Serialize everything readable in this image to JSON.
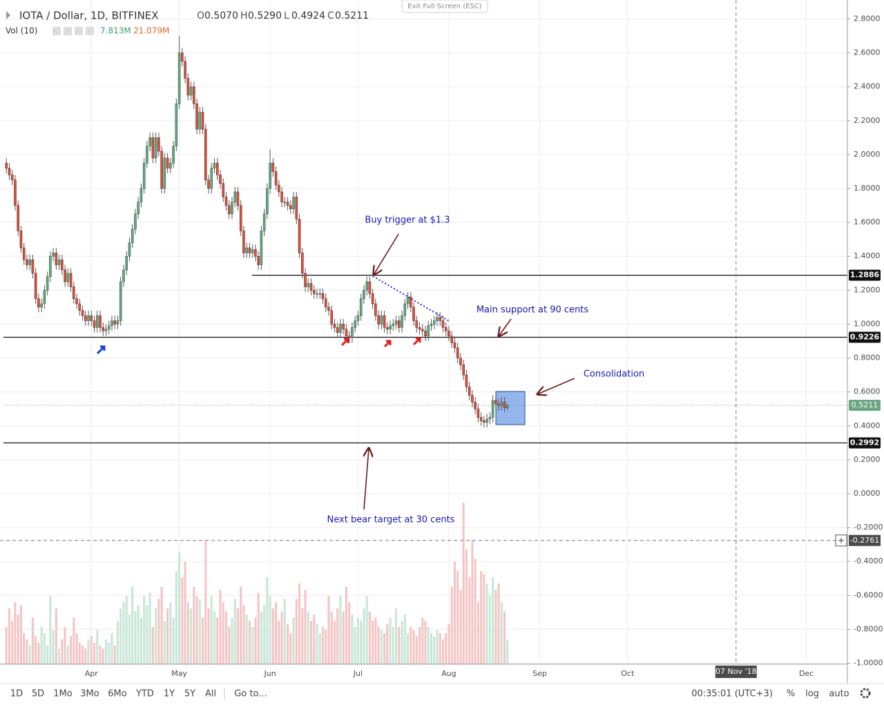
{
  "header": {
    "exit_fullscreen": "Exit Full Screen (ESC)",
    "symbol": "IOTA / Dollar, 1D, BITFINEX",
    "ohlc": [
      {
        "label": "O",
        "value": "0.5070"
      },
      {
        "label": "H",
        "value": "0.5290"
      },
      {
        "label": "L",
        "value": "0.4924"
      },
      {
        "label": "C",
        "value": "0.5211"
      }
    ],
    "volume_title": "Vol (10)",
    "volume_value": "7.813M",
    "volume_ma": "21.079M"
  },
  "chart_data": {
    "type": "candlestick",
    "x": [
      "2018-03-03",
      "2018-03-04",
      "2018-03-05",
      "2018-03-06",
      "2018-03-07",
      "2018-03-08",
      "2018-03-09",
      "2018-03-10",
      "2018-03-11",
      "2018-03-12",
      "2018-03-13",
      "2018-03-14",
      "2018-03-15",
      "2018-03-16",
      "2018-03-17",
      "2018-03-18",
      "2018-03-19",
      "2018-03-20",
      "2018-03-21",
      "2018-03-22",
      "2018-03-23",
      "2018-03-24",
      "2018-03-25",
      "2018-03-26",
      "2018-03-27",
      "2018-03-28",
      "2018-03-29",
      "2018-03-30",
      "2018-03-31",
      "2018-04-01",
      "2018-04-02",
      "2018-04-03",
      "2018-04-04",
      "2018-04-05",
      "2018-04-06",
      "2018-04-07",
      "2018-04-08",
      "2018-04-09",
      "2018-04-10",
      "2018-04-11",
      "2018-04-12",
      "2018-04-13",
      "2018-04-14",
      "2018-04-15",
      "2018-04-16",
      "2018-04-17",
      "2018-04-18",
      "2018-04-19",
      "2018-04-20",
      "2018-04-21",
      "2018-04-22",
      "2018-04-23",
      "2018-04-24",
      "2018-04-25",
      "2018-04-26",
      "2018-04-27",
      "2018-04-28",
      "2018-04-29",
      "2018-04-30",
      "2018-05-01",
      "2018-05-02",
      "2018-05-03",
      "2018-05-04",
      "2018-05-05",
      "2018-05-06",
      "2018-05-07",
      "2018-05-08",
      "2018-05-09",
      "2018-05-10",
      "2018-05-11",
      "2018-05-12",
      "2018-05-13",
      "2018-05-14",
      "2018-05-15",
      "2018-05-16",
      "2018-05-17",
      "2018-05-18",
      "2018-05-19",
      "2018-05-20",
      "2018-05-21",
      "2018-05-22",
      "2018-05-23",
      "2018-05-24",
      "2018-05-25",
      "2018-05-26",
      "2018-05-27",
      "2018-05-28",
      "2018-05-29",
      "2018-05-30",
      "2018-05-31",
      "2018-06-01",
      "2018-06-02",
      "2018-06-03",
      "2018-06-04",
      "2018-06-05",
      "2018-06-06",
      "2018-06-07",
      "2018-06-08",
      "2018-06-09",
      "2018-06-10",
      "2018-06-11",
      "2018-06-12",
      "2018-06-13",
      "2018-06-14",
      "2018-06-15",
      "2018-06-16",
      "2018-06-17",
      "2018-06-18",
      "2018-06-19",
      "2018-06-20",
      "2018-06-21",
      "2018-06-22",
      "2018-06-23",
      "2018-06-24",
      "2018-06-25",
      "2018-06-26",
      "2018-06-27",
      "2018-06-28",
      "2018-06-29",
      "2018-06-30",
      "2018-07-01",
      "2018-07-02",
      "2018-07-03",
      "2018-07-04",
      "2018-07-05",
      "2018-07-06",
      "2018-07-07",
      "2018-07-08",
      "2018-07-09",
      "2018-07-10",
      "2018-07-11",
      "2018-07-12",
      "2018-07-13",
      "2018-07-14",
      "2018-07-15",
      "2018-07-16",
      "2018-07-17",
      "2018-07-18",
      "2018-07-19",
      "2018-07-20",
      "2018-07-21",
      "2018-07-22",
      "2018-07-23",
      "2018-07-24",
      "2018-07-25",
      "2018-07-26",
      "2018-07-27",
      "2018-07-28",
      "2018-07-29",
      "2018-07-30",
      "2018-07-31",
      "2018-08-01",
      "2018-08-02",
      "2018-08-03",
      "2018-08-04",
      "2018-08-05",
      "2018-08-06",
      "2018-08-07",
      "2018-08-08",
      "2018-08-09",
      "2018-08-10",
      "2018-08-11",
      "2018-08-12",
      "2018-08-13",
      "2018-08-14",
      "2018-08-15",
      "2018-08-16",
      "2018-08-17",
      "2018-08-18",
      "2018-08-19",
      "2018-08-20",
      "2018-08-21"
    ],
    "open": [
      1.95,
      1.92,
      1.88,
      1.85,
      1.7,
      1.55,
      1.45,
      1.38,
      1.35,
      1.38,
      1.3,
      1.15,
      1.1,
      1.12,
      1.2,
      1.28,
      1.4,
      1.42,
      1.35,
      1.38,
      1.32,
      1.25,
      1.3,
      1.22,
      1.15,
      1.12,
      1.08,
      1.05,
      1.02,
      1.05,
      1.02,
      0.98,
      1.05,
      0.98,
      0.96,
      0.97,
      0.99,
      1.02,
      1.0,
      1.02,
      1.25,
      1.32,
      1.4,
      1.48,
      1.56,
      1.65,
      1.72,
      1.8,
      1.95,
      2.05,
      2.1,
      1.98,
      2.1,
      2.02,
      1.8,
      1.98,
      1.92,
      1.95,
      2.05,
      2.3,
      2.6,
      2.55,
      2.45,
      2.35,
      2.4,
      2.3,
      2.15,
      2.25,
      2.15,
      1.85,
      1.8,
      1.92,
      1.95,
      1.88,
      1.83,
      1.75,
      1.7,
      1.65,
      1.72,
      1.78,
      1.7,
      1.55,
      1.42,
      1.45,
      1.42,
      1.44,
      1.4,
      1.35,
      1.55,
      1.65,
      1.8,
      1.95,
      1.9,
      1.82,
      1.78,
      1.72,
      1.72,
      1.7,
      1.68,
      1.75,
      1.62,
      1.42,
      1.3,
      1.22,
      1.24,
      1.2,
      1.18,
      1.18,
      1.18,
      1.15,
      1.1,
      1.08,
      1.0,
      0.98,
      0.95,
      1.0,
      0.97,
      0.93,
      0.92,
      0.98,
      1.02,
      1.05,
      1.15,
      1.2,
      1.25,
      1.18,
      1.12,
      1.05,
      1.0,
      1.05,
      0.98,
      0.97,
      0.99,
      1.0,
      1.02,
      0.98,
      1.05,
      1.12,
      1.16,
      1.1,
      1.02,
      0.98,
      0.97,
      0.96,
      0.93,
      0.99,
      1.0,
      1.02,
      1.04,
      1.02,
      0.98,
      0.96,
      0.93,
      0.89,
      0.86,
      0.8,
      0.76,
      0.7,
      0.63,
      0.58,
      0.54,
      0.5,
      0.45,
      0.43,
      0.42,
      0.44,
      0.45,
      0.55,
      0.53,
      0.52,
      0.54,
      0.507
    ],
    "high": [
      1.98,
      1.95,
      1.91,
      1.88,
      1.73,
      1.58,
      1.48,
      1.41,
      1.41,
      1.41,
      1.33,
      1.18,
      1.15,
      1.23,
      1.31,
      1.43,
      1.45,
      1.45,
      1.41,
      1.41,
      1.35,
      1.33,
      1.33,
      1.25,
      1.18,
      1.15,
      1.11,
      1.08,
      1.08,
      1.08,
      1.05,
      1.08,
      1.08,
      1.01,
      1.0,
      1.02,
      1.05,
      1.05,
      1.05,
      1.28,
      1.35,
      1.43,
      1.51,
      1.59,
      1.68,
      1.75,
      1.83,
      1.98,
      2.08,
      2.13,
      2.13,
      2.13,
      2.13,
      2.05,
      2.01,
      2.01,
      1.98,
      2.08,
      2.33,
      2.7,
      2.63,
      2.58,
      2.48,
      2.43,
      2.43,
      2.33,
      2.28,
      2.28,
      2.18,
      1.88,
      1.95,
      1.98,
      1.98,
      1.91,
      1.86,
      1.78,
      1.73,
      1.75,
      1.81,
      1.81,
      1.73,
      1.58,
      1.48,
      1.48,
      1.47,
      1.47,
      1.43,
      1.58,
      1.68,
      1.83,
      2.03,
      1.98,
      1.93,
      1.85,
      1.81,
      1.75,
      1.75,
      1.73,
      1.78,
      1.78,
      1.65,
      1.45,
      1.33,
      1.27,
      1.27,
      1.23,
      1.21,
      1.21,
      1.21,
      1.18,
      1.13,
      1.11,
      1.03,
      1.01,
      1.03,
      1.03,
      1.0,
      0.96,
      1.01,
      1.05,
      1.08,
      1.18,
      1.23,
      1.28,
      1.28,
      1.21,
      1.15,
      1.08,
      1.08,
      1.08,
      1.01,
      1.02,
      1.03,
      1.05,
      1.05,
      1.08,
      1.15,
      1.19,
      1.19,
      1.13,
      1.05,
      1.01,
      1.0,
      0.99,
      1.02,
      1.03,
      1.05,
      1.07,
      1.07,
      1.05,
      1.01,
      0.99,
      0.96,
      0.92,
      0.89,
      0.83,
      0.79,
      0.73,
      0.66,
      0.61,
      0.57,
      0.53,
      0.48,
      0.46,
      0.47,
      0.48,
      0.58,
      0.58,
      0.56,
      0.57,
      0.57,
      0.529
    ],
    "low": [
      1.89,
      1.85,
      1.82,
      1.67,
      1.52,
      1.42,
      1.35,
      1.32,
      1.32,
      1.27,
      1.12,
      1.07,
      1.07,
      1.09,
      1.17,
      1.25,
      1.37,
      1.32,
      1.32,
      1.29,
      1.22,
      1.22,
      1.19,
      1.12,
      1.09,
      1.05,
      1.02,
      0.99,
      0.99,
      0.99,
      0.95,
      0.95,
      0.95,
      0.93,
      0.93,
      0.94,
      0.96,
      0.97,
      0.97,
      0.99,
      1.22,
      1.29,
      1.37,
      1.45,
      1.53,
      1.62,
      1.69,
      1.77,
      1.92,
      2.02,
      1.95,
      1.95,
      1.99,
      1.77,
      1.77,
      1.89,
      1.89,
      1.92,
      2.02,
      2.27,
      2.52,
      2.42,
      2.32,
      2.32,
      2.27,
      2.12,
      2.12,
      2.12,
      1.82,
      1.77,
      1.77,
      1.89,
      1.85,
      1.8,
      1.72,
      1.67,
      1.62,
      1.62,
      1.69,
      1.67,
      1.52,
      1.39,
      1.39,
      1.39,
      1.39,
      1.37,
      1.32,
      1.32,
      1.52,
      1.62,
      1.77,
      1.87,
      1.79,
      1.75,
      1.69,
      1.69,
      1.67,
      1.65,
      1.65,
      1.59,
      1.39,
      1.27,
      1.19,
      1.19,
      1.17,
      1.15,
      1.15,
      1.15,
      1.12,
      1.07,
      1.05,
      0.97,
      0.95,
      0.92,
      0.92,
      0.94,
      0.9,
      0.89,
      0.89,
      0.95,
      0.99,
      1.02,
      1.12,
      1.17,
      1.15,
      1.09,
      1.02,
      0.97,
      0.97,
      0.95,
      0.94,
      0.94,
      0.96,
      0.97,
      0.95,
      0.95,
      1.02,
      1.09,
      1.07,
      0.99,
      0.95,
      0.94,
      0.93,
      0.9,
      0.9,
      0.96,
      0.97,
      0.99,
      0.99,
      0.95,
      0.93,
      0.9,
      0.86,
      0.83,
      0.77,
      0.73,
      0.67,
      0.6,
      0.55,
      0.51,
      0.47,
      0.42,
      0.4,
      0.39,
      0.39,
      0.41,
      0.42,
      0.5,
      0.49,
      0.49,
      0.48,
      0.4924
    ],
    "close": [
      1.92,
      1.88,
      1.85,
      1.7,
      1.55,
      1.45,
      1.38,
      1.35,
      1.38,
      1.3,
      1.15,
      1.1,
      1.12,
      1.2,
      1.28,
      1.4,
      1.42,
      1.35,
      1.38,
      1.32,
      1.25,
      1.3,
      1.22,
      1.15,
      1.12,
      1.08,
      1.05,
      1.02,
      1.05,
      1.02,
      0.98,
      1.05,
      0.98,
      0.96,
      0.97,
      0.99,
      1.02,
      1.0,
      1.02,
      1.25,
      1.32,
      1.4,
      1.48,
      1.56,
      1.65,
      1.72,
      1.8,
      1.95,
      2.05,
      2.1,
      1.98,
      2.1,
      2.02,
      1.8,
      1.98,
      1.92,
      1.95,
      2.05,
      2.3,
      2.6,
      2.55,
      2.45,
      2.35,
      2.4,
      2.3,
      2.15,
      2.25,
      2.15,
      1.85,
      1.8,
      1.92,
      1.95,
      1.88,
      1.83,
      1.75,
      1.7,
      1.65,
      1.72,
      1.78,
      1.7,
      1.55,
      1.42,
      1.45,
      1.42,
      1.44,
      1.4,
      1.35,
      1.55,
      1.65,
      1.8,
      1.95,
      1.9,
      1.82,
      1.78,
      1.72,
      1.72,
      1.7,
      1.68,
      1.75,
      1.62,
      1.42,
      1.3,
      1.22,
      1.24,
      1.2,
      1.18,
      1.18,
      1.18,
      1.15,
      1.1,
      1.08,
      1.0,
      0.98,
      0.95,
      1.0,
      0.97,
      0.93,
      0.92,
      0.98,
      1.02,
      1.05,
      1.15,
      1.2,
      1.25,
      1.18,
      1.12,
      1.05,
      1.0,
      1.05,
      0.98,
      0.97,
      0.99,
      1.0,
      1.02,
      0.98,
      1.05,
      1.12,
      1.16,
      1.1,
      1.02,
      0.98,
      0.97,
      0.96,
      0.93,
      0.99,
      1.0,
      1.02,
      1.04,
      1.02,
      0.98,
      0.96,
      0.93,
      0.89,
      0.86,
      0.8,
      0.76,
      0.7,
      0.63,
      0.58,
      0.54,
      0.5,
      0.45,
      0.43,
      0.42,
      0.44,
      0.45,
      0.55,
      0.53,
      0.52,
      0.54,
      0.507,
      0.5211
    ],
    "volume": [
      12,
      18,
      14,
      20,
      16,
      19,
      10,
      8,
      6,
      15,
      9,
      7,
      12,
      10,
      6,
      22,
      11,
      18,
      5,
      8,
      12,
      6,
      9,
      15,
      10,
      7,
      6,
      5,
      8,
      9,
      7,
      11,
      6,
      5,
      8,
      7,
      10,
      6,
      14,
      18,
      20,
      22,
      16,
      25,
      17,
      19,
      15,
      22,
      19,
      23,
      12,
      18,
      21,
      25,
      14,
      18,
      20,
      15,
      30,
      36,
      28,
      33,
      20,
      18,
      25,
      22,
      21,
      15,
      40,
      18,
      22,
      17,
      15,
      24,
      20,
      17,
      12,
      15,
      21,
      18,
      25,
      19,
      16,
      14,
      12,
      15,
      23,
      17,
      19,
      28,
      22,
      18,
      20,
      14,
      17,
      21,
      13,
      10,
      15,
      21,
      26,
      18,
      24,
      17,
      14,
      16,
      13,
      10,
      12,
      11,
      22,
      17,
      14,
      18,
      22,
      17,
      25,
      20,
      16,
      12,
      15,
      14,
      18,
      22,
      17,
      14,
      15,
      12,
      11,
      10,
      13,
      15,
      12,
      18,
      12,
      14,
      16,
      10,
      12,
      11,
      9,
      12,
      15,
      14,
      12,
      10,
      9,
      11,
      10,
      8,
      10,
      13,
      25,
      33,
      30,
      24,
      52,
      37,
      28,
      40,
      34,
      20,
      30,
      29,
      26,
      22,
      28,
      24,
      26,
      20,
      17,
      7.813
    ],
    "volume_ylim": [
      0,
      214
    ],
    "up_color": "#6ba583",
    "down_color": "#d75442",
    "volume_up_color": "#c8e6d7",
    "volume_down_color": "#f5c4c4",
    "xlim": [
      "2018-03-02",
      "2018-12-15"
    ],
    "xticks": [
      {
        "value": "2018-04-01",
        "label": "Apr"
      },
      {
        "value": "2018-05-01",
        "label": "May"
      },
      {
        "value": "2018-06-01",
        "label": "Jun"
      },
      {
        "value": "2018-07-01",
        "label": "Jul"
      },
      {
        "value": "2018-08-01",
        "label": "Aug"
      },
      {
        "value": "2018-09-01",
        "label": "Sep"
      },
      {
        "value": "2018-10-01",
        "label": "Oct"
      },
      {
        "value": "2018-12-01",
        "label": "Dec"
      }
    ],
    "ylim": [
      -1.006,
      2.912
    ],
    "yticks": [
      {
        "value": 2.8,
        "label": "2.8000"
      },
      {
        "value": 2.6,
        "label": "2.6000"
      },
      {
        "value": 2.4,
        "label": "2.4000"
      },
      {
        "value": 2.2,
        "label": "2.2000"
      },
      {
        "value": 2.0,
        "label": "2.0000"
      },
      {
        "value": 1.8,
        "label": "1.8000"
      },
      {
        "value": 1.6,
        "label": "1.6000"
      },
      {
        "value": 1.4,
        "label": "1.4000"
      },
      {
        "value": 1.2,
        "label": "1.2000"
      },
      {
        "value": 1.0,
        "label": "1.0000"
      },
      {
        "value": 0.8,
        "label": "0.8000"
      },
      {
        "value": 0.6,
        "label": "0.6000"
      },
      {
        "value": 0.4,
        "label": "0.4000"
      },
      {
        "value": 0.2,
        "label": "0.2000"
      },
      {
        "value": 0,
        "label": "0.0000"
      },
      {
        "value": -0.2,
        "label": "-0.2000"
      },
      {
        "value": -0.4,
        "label": "-0.4000"
      },
      {
        "value": -0.6,
        "label": "-0.6000"
      },
      {
        "value": -0.8,
        "label": "-0.8000"
      },
      {
        "value": -1.0,
        "label": "-1.0000"
      }
    ],
    "grid": true,
    "price_lines": [
      1.2886,
      0.9226,
      0.2992
    ],
    "last_price": 0.5211,
    "crosshair": {
      "x": "2018-11-07",
      "x_label": "07 Nov '18",
      "y": -0.2761
    },
    "annotations": [
      "Buy trigger at $1.3",
      "Main support at 90 cents",
      "Consolidation",
      "Next bear target at 30 cents"
    ]
  },
  "toolbar": {
    "ranges": [
      "1D",
      "5D",
      "1Mo",
      "3Mo",
      "6Mo",
      "YTD",
      "1Y",
      "5Y",
      "All"
    ],
    "goto": "Go to...",
    "time": "00:35:01 (UTC+3)",
    "percent": "%",
    "log": "log",
    "auto": "auto"
  }
}
